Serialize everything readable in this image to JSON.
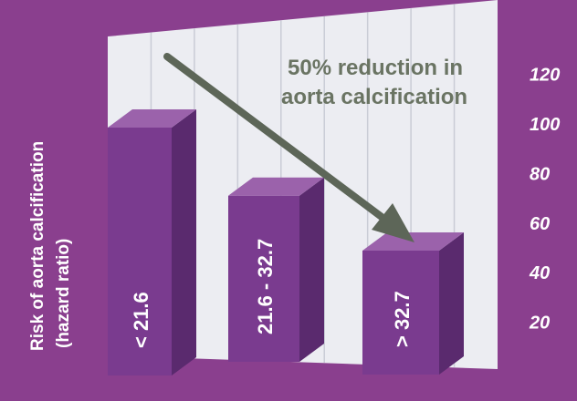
{
  "chart_data": {
    "type": "bar",
    "title": "",
    "ylabel_line1": "Risk of aorta calcification",
    "ylabel_line2": "(hazard ratio)",
    "categories": [
      "< 21.6",
      "21.6 - 32.7",
      "> 32.7"
    ],
    "values": [
      100,
      67,
      50
    ],
    "y_ticks": [
      20,
      40,
      60,
      80,
      100,
      120
    ],
    "ylim": [
      0,
      130
    ],
    "grid": true,
    "annotation": {
      "line1": "50% reduction in",
      "line2": "aorta calcification"
    },
    "colors": {
      "background": "#8a3f8e",
      "bar_front": "#7a3b8f",
      "bar_side": "#5a2a6e",
      "bar_top": "#9b62ab",
      "grid_panel": "#ecedf2",
      "grid_line": "#c9ccd6",
      "arrow": "#5d6658",
      "annotation_text": "#6a7463",
      "label_text": "#ffffff"
    }
  }
}
